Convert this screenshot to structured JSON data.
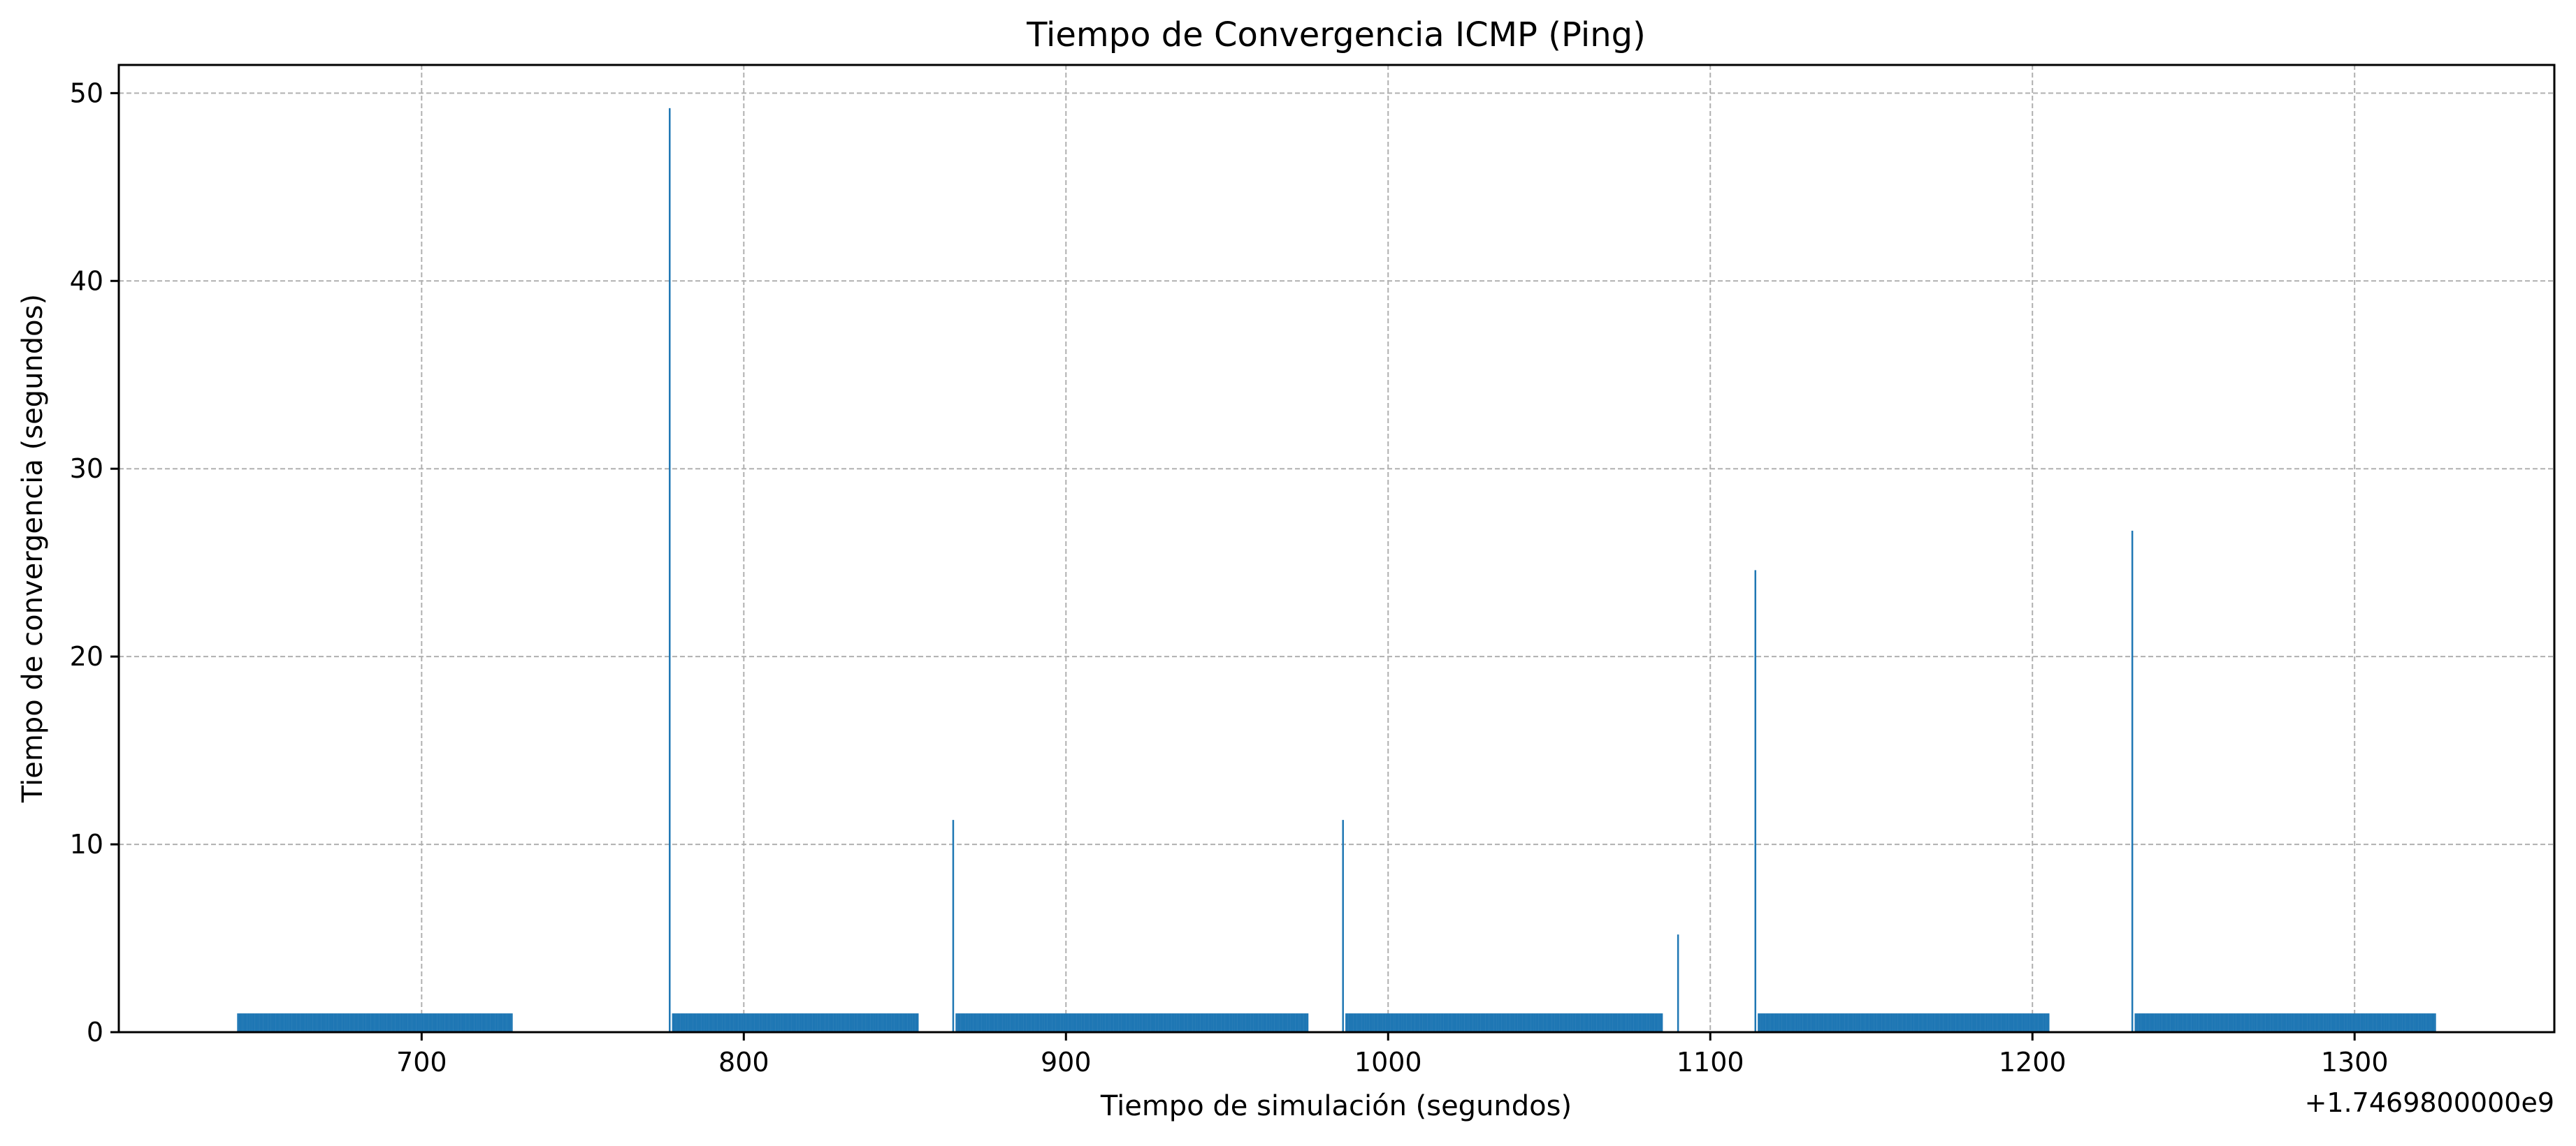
{
  "chart_data": {
    "type": "bar",
    "title": "Tiempo de Convergencia ICMP (Ping)",
    "xlabel": "Tiempo de simulación (segundos)",
    "ylabel": "Tiempo de convergencia (segundos)",
    "x_offset_label": "+1.7469800000e9",
    "xlim": [
      606,
      1362
    ],
    "ylim": [
      0,
      51.5
    ],
    "x_ticks": [
      700,
      800,
      900,
      1000,
      1100,
      1200,
      1300
    ],
    "x_tick_labels": [
      "700",
      "800",
      "900",
      "1000",
      "1100",
      "1200",
      "1300"
    ],
    "y_ticks": [
      0,
      10,
      20,
      30,
      40,
      50
    ],
    "y_tick_labels": [
      "0",
      "10",
      "20",
      "30",
      "40",
      "50"
    ],
    "grid": true,
    "bar_color": "#1f77b4",
    "spikes": [
      {
        "x": 777,
        "value": 49.2
      },
      {
        "x": 865,
        "value": 11.3
      },
      {
        "x": 986,
        "value": 11.3
      },
      {
        "x": 1090,
        "value": 5.2
      },
      {
        "x": 1114,
        "value": 24.6
      },
      {
        "x": 1231,
        "value": 26.7
      }
    ],
    "steady_runs": [
      {
        "x_start": 643,
        "x_end": 728,
        "value": 1.0
      },
      {
        "x_start": 778,
        "x_end": 854,
        "value": 1.0
      },
      {
        "x_start": 866,
        "x_end": 975,
        "value": 1.0
      },
      {
        "x_start": 987,
        "x_end": 1085,
        "value": 1.0
      },
      {
        "x_start": 1115,
        "x_end": 1205,
        "value": 1.0
      },
      {
        "x_start": 1232,
        "x_end": 1325,
        "value": 1.0
      }
    ]
  }
}
